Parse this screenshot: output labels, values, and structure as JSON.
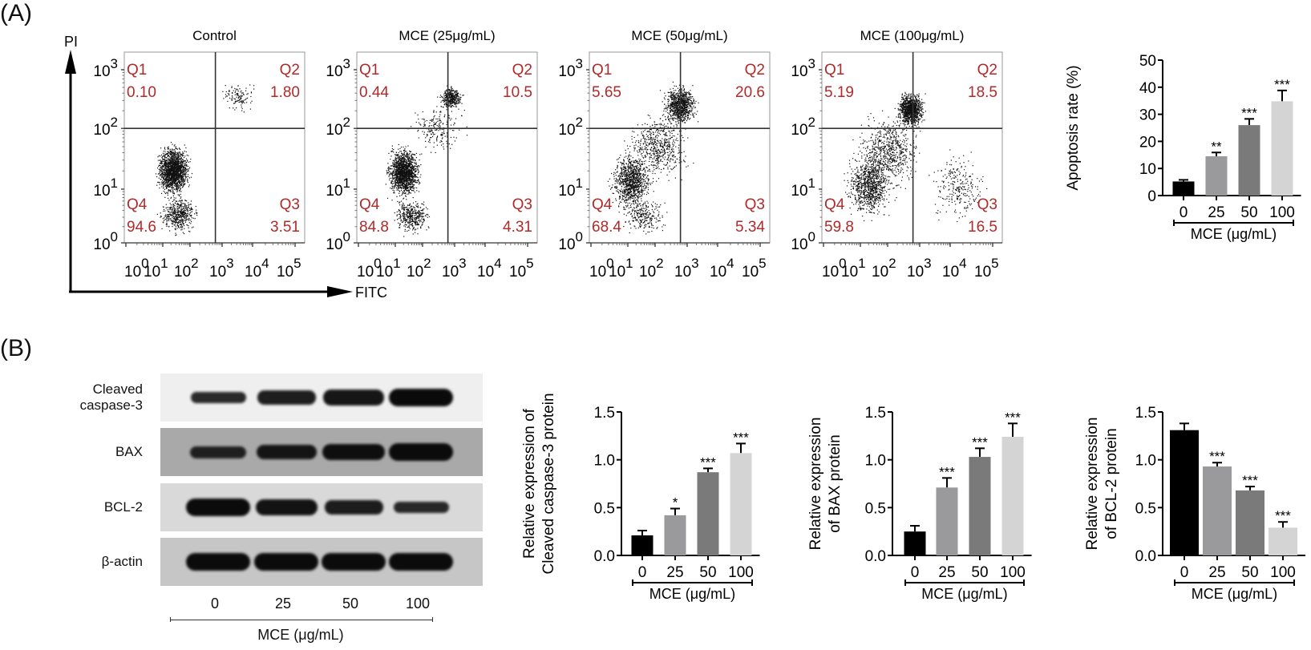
{
  "panels": {
    "a_label": "(A)",
    "b_label": "(B)"
  },
  "flow": {
    "y_axis_label": "PI",
    "x_axis_label": "FITC",
    "y_ticks": [
      {
        "base": "10",
        "exp": "3"
      },
      {
        "base": "10",
        "exp": "2"
      },
      {
        "base": "10",
        "exp": "1"
      },
      {
        "base": "10",
        "exp": "0"
      }
    ],
    "x_ticks": [
      {
        "base": "10",
        "exp": "0"
      },
      {
        "base": "10",
        "exp": "1"
      },
      {
        "base": "10",
        "exp": "2"
      },
      {
        "base": "10",
        "exp": "3"
      },
      {
        "base": "10",
        "exp": "4"
      },
      {
        "base": "10",
        "exp": "5"
      }
    ],
    "quadrant_color": "#b02a2a",
    "plots": [
      {
        "title": "Control",
        "q1": {
          "name": "Q1",
          "value": "0.10"
        },
        "q2": {
          "name": "Q2",
          "value": "1.80"
        },
        "q3": {
          "name": "Q3",
          "value": "3.51"
        },
        "q4": {
          "name": "Q4",
          "value": "94.6"
        }
      },
      {
        "title": "MCE (25μg/mL)",
        "q1": {
          "name": "Q1",
          "value": "0.44"
        },
        "q2": {
          "name": "Q2",
          "value": "10.5"
        },
        "q3": {
          "name": "Q3",
          "value": "4.31"
        },
        "q4": {
          "name": "Q4",
          "value": "84.8"
        }
      },
      {
        "title": "MCE (50μg/mL)",
        "q1": {
          "name": "Q1",
          "value": "5.65"
        },
        "q2": {
          "name": "Q2",
          "value": "20.6"
        },
        "q3": {
          "name": "Q3",
          "value": "5.34"
        },
        "q4": {
          "name": "Q4",
          "value": "68.4"
        }
      },
      {
        "title": "MCE (100μg/mL)",
        "q1": {
          "name": "Q1",
          "value": "5.19"
        },
        "q2": {
          "name": "Q2",
          "value": "18.5"
        },
        "q3": {
          "name": "Q3",
          "value": "16.5"
        },
        "q4": {
          "name": "Q4",
          "value": "59.8"
        }
      }
    ]
  },
  "western": {
    "rows": [
      {
        "label": "Cleaved caspase-3",
        "label_line1": "Cleaved",
        "label_line2": "caspase-3",
        "band_intensity": [
          0.45,
          0.65,
          0.8,
          1.0
        ],
        "background": "#efefef"
      },
      {
        "label": "BAX",
        "band_intensity": [
          0.5,
          0.75,
          0.9,
          1.0
        ],
        "background": "#a9a9a9"
      },
      {
        "label": "BCL-2",
        "band_intensity": [
          1.0,
          0.85,
          0.65,
          0.45
        ],
        "background": "#d9d9d9"
      },
      {
        "label": "β-actin",
        "band_intensity": [
          1.0,
          1.0,
          1.0,
          1.0
        ],
        "background": "#c6c6c6"
      }
    ],
    "lanes": [
      "0",
      "25",
      "50",
      "100"
    ],
    "xlabel": "MCE (μg/mL)"
  },
  "chart_data": [
    {
      "type": "bar",
      "id": "apoptosis",
      "title": "",
      "categories": [
        "0",
        "25",
        "50",
        "100"
      ],
      "values": [
        5.2,
        14.5,
        26.0,
        34.8
      ],
      "error_upper": [
        5.8,
        15.9,
        28.3,
        38.8
      ],
      "significance": [
        "",
        "**",
        "***",
        "***"
      ],
      "colors": [
        "#000000",
        "#9a9a9c",
        "#7a7a7a",
        "#d4d4d4"
      ],
      "xlabel": "MCE (μg/mL)",
      "ylabel": "Apoptosis rate (%)",
      "ylim": [
        0,
        50
      ],
      "yticks": [
        0,
        10,
        20,
        30,
        40,
        50
      ],
      "ytick_labels": [
        "0",
        "10",
        "20",
        "30",
        "40",
        "50"
      ],
      "grid": false
    },
    {
      "type": "bar",
      "id": "caspase3",
      "title": "",
      "categories": [
        "0",
        "25",
        "50",
        "100"
      ],
      "values": [
        0.21,
        0.42,
        0.87,
        1.07
      ],
      "error_upper": [
        0.26,
        0.49,
        0.91,
        1.17
      ],
      "significance": [
        "",
        "*",
        "***",
        "***"
      ],
      "colors": [
        "#000000",
        "#9a9a9c",
        "#7a7a7a",
        "#d4d4d4"
      ],
      "xlabel": "MCE (μg/mL)",
      "ylabel_line1": "Relative expression of",
      "ylabel_line2": "Cleaved caspase-3 protein",
      "ylim": [
        0,
        1.5
      ],
      "yticks": [
        0,
        0.5,
        1.0,
        1.5
      ],
      "ytick_labels": [
        "0.0",
        "0.5",
        "1.0",
        "1.5"
      ],
      "grid": false
    },
    {
      "type": "bar",
      "id": "bax",
      "title": "",
      "categories": [
        "0",
        "25",
        "50",
        "100"
      ],
      "values": [
        0.25,
        0.71,
        1.03,
        1.24
      ],
      "error_upper": [
        0.31,
        0.81,
        1.12,
        1.38
      ],
      "significance": [
        "",
        "***",
        "***",
        "***"
      ],
      "colors": [
        "#000000",
        "#9a9a9c",
        "#7a7a7a",
        "#d4d4d4"
      ],
      "xlabel": "MCE (μg/mL)",
      "ylabel_line1": "Relative expression",
      "ylabel_line2": "of BAX protein",
      "ylim": [
        0,
        1.5
      ],
      "yticks": [
        0,
        0.5,
        1.0,
        1.5
      ],
      "ytick_labels": [
        "0.0",
        "0.5",
        "1.0",
        "1.5"
      ],
      "grid": false
    },
    {
      "type": "bar",
      "id": "bcl2",
      "title": "",
      "categories": [
        "0",
        "25",
        "50",
        "100"
      ],
      "values": [
        1.31,
        0.93,
        0.68,
        0.29
      ],
      "error_upper": [
        1.38,
        0.97,
        0.72,
        0.35
      ],
      "significance": [
        "",
        "***",
        "***",
        "***"
      ],
      "colors": [
        "#000000",
        "#9a9a9c",
        "#7a7a7a",
        "#d4d4d4"
      ],
      "xlabel": "MCE (μg/mL)",
      "ylabel_line1": "Relative expression",
      "ylabel_line2": "of BCL-2 protein",
      "ylim": [
        0,
        1.5
      ],
      "yticks": [
        0,
        0.5,
        1.0,
        1.5
      ],
      "ytick_labels": [
        "0.0",
        "0.5",
        "1.0",
        "1.5"
      ],
      "grid": false
    }
  ]
}
